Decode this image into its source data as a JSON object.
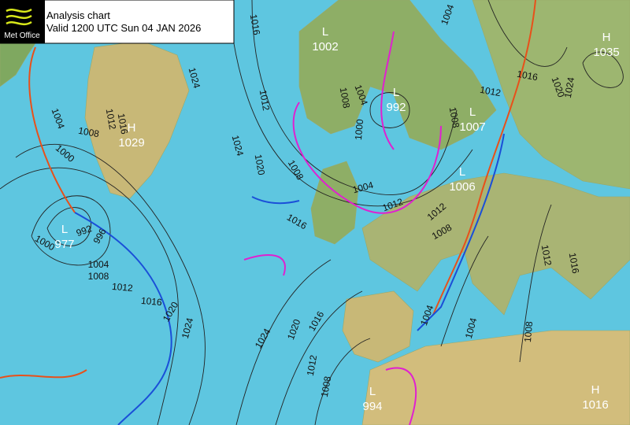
{
  "header": {
    "logo": "Met Office",
    "title": "Analysis chart",
    "valid": "Valid 1200 UTC Sun 04 JAN 2026"
  },
  "centers": [
    {
      "kind": "L",
      "value": "1002"
    },
    {
      "kind": "H",
      "value": "1035"
    },
    {
      "kind": "L",
      "value": "992"
    },
    {
      "kind": "L",
      "value": "1007"
    },
    {
      "kind": "H",
      "value": "1029"
    },
    {
      "kind": "L",
      "value": "1006"
    },
    {
      "kind": "L",
      "value": "977"
    },
    {
      "kind": "L",
      "value": "994"
    },
    {
      "kind": "H",
      "value": "1016"
    }
  ],
  "isobar_labels": [
    "1016",
    "1004",
    "1024",
    "1012",
    "1016",
    "1020",
    "1024",
    "1008",
    "1004",
    "1012",
    "1000",
    "1008",
    "1012",
    "1016",
    "1004",
    "1008",
    "1000",
    "1024",
    "1020",
    "1008",
    "1004",
    "1012",
    "1012",
    "1008",
    "1016",
    "992",
    "996",
    "1000",
    "1004",
    "1008",
    "1012",
    "1016",
    "1020",
    "1024",
    "1024",
    "1020",
    "1016",
    "1012",
    "1008",
    "1004",
    "1004",
    "1008",
    "1012",
    "1016"
  ]
}
